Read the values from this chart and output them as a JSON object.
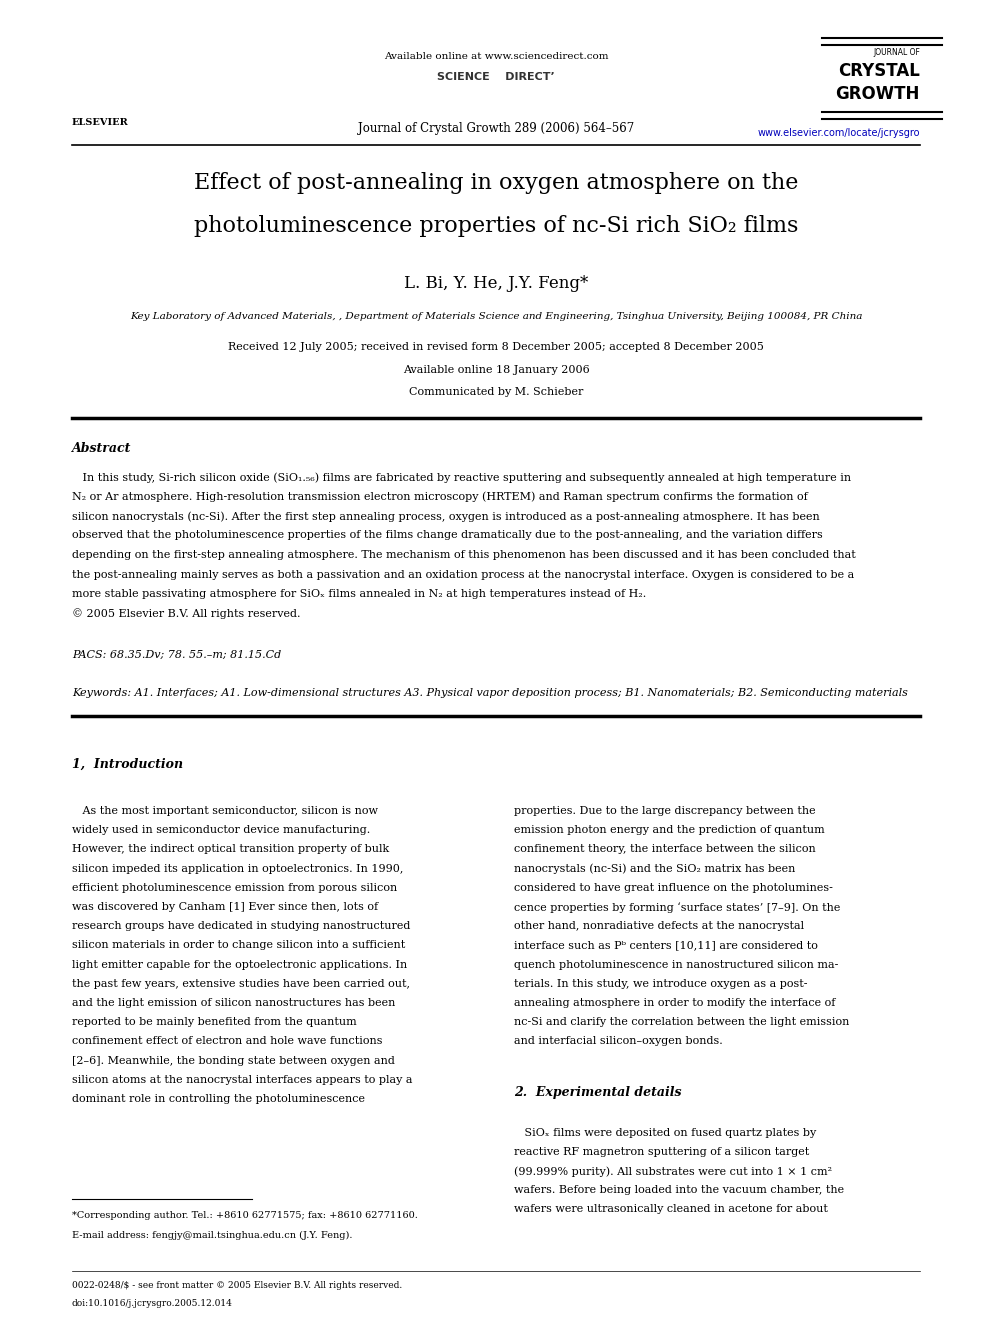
{
  "background_color": "#ffffff",
  "page_width": 9.92,
  "page_height": 13.23,
  "header": {
    "available_online": "Available online at www.sciencedirect.com",
    "sciencedirect": "SCIENCE    DIRECT’",
    "journal_info": "Journal of Crystal Growth 289 (2006) 564–567",
    "journal_of": "JOURNAL OF",
    "crystal": "CRYSTAL",
    "growth": "GROWTH",
    "url": "www.elsevier.com/locate/jcrysgro",
    "url_color": "#0000bb",
    "elsevier": "ELSEVIER"
  },
  "title_line1": "Effect of post-annealing in oxygen atmosphere on the",
  "title_line2": "photoluminescence properties of nc-Si rich SiO₂ films",
  "authors": "L. Bi, Y. He, J.Y. Feng*",
  "affiliation": "Key Laboratory of Advanced Materials, , Department of Materials Science and Engineering, Tsinghua University, Beijing 100084, PR China",
  "received": "Received 12 July 2005; received in revised form 8 December 2005; accepted 8 December 2005",
  "available": "Available online 18 January 2006",
  "communicated": "Communicated by M. Schieber",
  "abstract_label": "Abstract",
  "abstract_lines": [
    "   In this study, Si-rich silicon oxide (SiO₁.₅₆) films are fabricated by reactive sputtering and subsequently annealed at high temperature in",
    "N₂ or Ar atmosphere. High-resolution transmission electron microscopy (HRTEM) and Raman spectrum confirms the formation of",
    "silicon nanocrystals (nc-Si). After the first step annealing process, oxygen is introduced as a post-annealing atmosphere. It has been",
    "observed that the photoluminescence properties of the films change dramatically due to the post-annealing, and the variation differs",
    "depending on the first-step annealing atmosphere. The mechanism of this phenomenon has been discussed and it has been concluded that",
    "the post-annealing mainly serves as both a passivation and an oxidation process at the nanocrystal interface. Oxygen is considered to be a",
    "more stable passivating atmosphere for SiOₓ films annealed in N₂ at high temperatures instead of H₂.",
    "© 2005 Elsevier B.V. All rights reserved."
  ],
  "pacs": "PACS: 68.35.Dv; 78. 55.–m; 81.15.Cd",
  "keywords": "Keywords: A1. Interfaces; A1. Low-dimensional structures A3. Physical vapor deposition process; B1. Nanomaterials; B2. Semiconducting materials",
  "section1_title": "1,  Introduction",
  "intro_col1_lines": [
    "   As the most important semiconductor, silicon is now",
    "widely used in semiconductor device manufacturing.",
    "However, the indirect optical transition property of bulk",
    "silicon impeded its application in optoelectronics. In 1990,",
    "efficient photoluminescence emission from porous silicon",
    "was discovered by Canham [1] Ever since then, lots of",
    "research groups have dedicated in studying nanostructured",
    "silicon materials in order to change silicon into a sufficient",
    "light emitter capable for the optoelectronic applications. In",
    "the past few years, extensive studies have been carried out,",
    "and the light emission of silicon nanostructures has been",
    "reported to be mainly benefited from the quantum",
    "confinement effect of electron and hole wave functions",
    "[2–6]. Meanwhile, the bonding state between oxygen and",
    "silicon atoms at the nanocrystal interfaces appears to play a",
    "dominant role in controlling the photoluminescence"
  ],
  "intro_col2_lines": [
    "properties. Due to the large discrepancy between the",
    "emission photon energy and the prediction of quantum",
    "confinement theory, the interface between the silicon",
    "nanocrystals (nc-Si) and the SiO₂ matrix has been",
    "considered to have great influence on the photolumines-",
    "cence properties by forming ‘surface states’ [7–9]. On the",
    "other hand, nonradiative defects at the nanocrystal",
    "interface such as Pᵇ centers [10,11] are considered to",
    "quench photoluminescence in nanostructured silicon ma-",
    "terials. In this study, we introduce oxygen as a post-",
    "annealing atmosphere in order to modify the interface of",
    "nc-Si and clarify the correlation between the light emission",
    "and interfacial silicon–oxygen bonds."
  ],
  "section2_title": "2.  Experimental details",
  "exp_col2_lines": [
    "   SiOₓ films were deposited on fused quartz plates by",
    "reactive RF magnetron sputtering of a silicon target",
    "(99.999% purity). All substrates were cut into 1 × 1 cm²",
    "wafers. Before being loaded into the vacuum chamber, the",
    "wafers were ultrasonically cleaned in acetone for about"
  ],
  "footnote_line": "*Corresponding author. Tel.: +8610 62771575; fax: +8610 62771160.",
  "footnote_email": "E-mail address: fengjy@mail.tsinghua.edu.cn (J.Y. Feng).",
  "footer1": "0022-0248/$ - see front matter © 2005 Elsevier B.V. All rights reserved.",
  "footer2": "doi:10.1016/j.jcrysgro.2005.12.014"
}
